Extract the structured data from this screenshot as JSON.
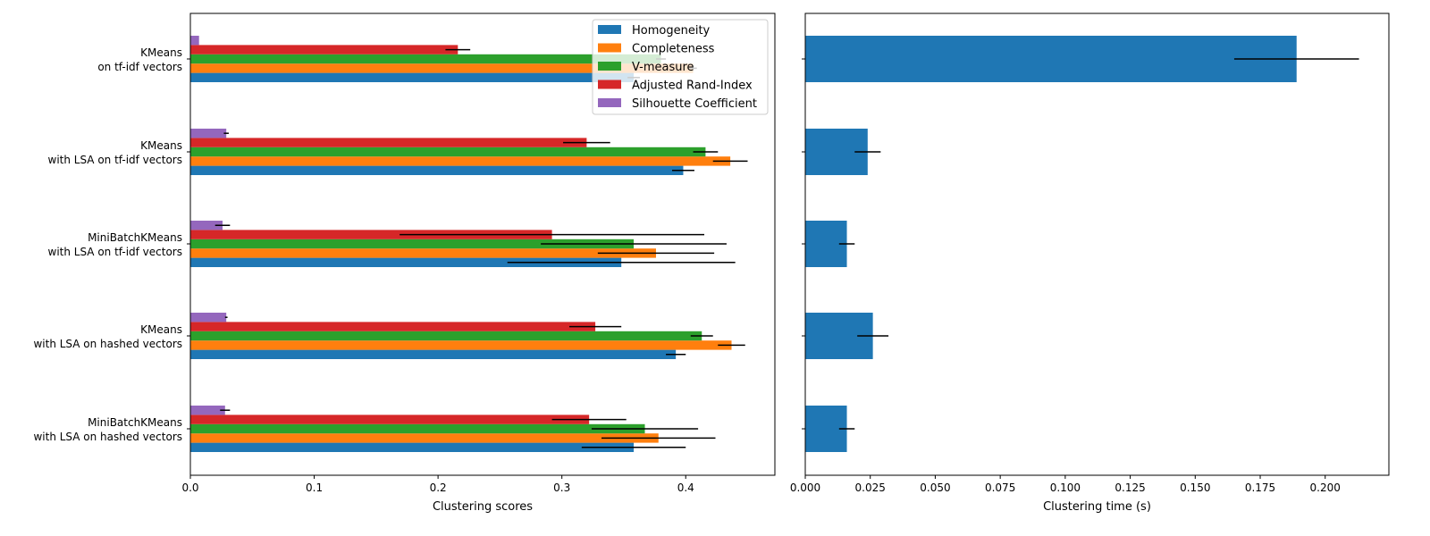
{
  "chart_data": [
    {
      "type": "bar",
      "orientation": "horizontal",
      "title": "",
      "xlabel": "Clustering scores",
      "ylabel": "",
      "xlim": [
        0,
        0.472
      ],
      "xticks": [
        "0.0",
        "0.1",
        "0.2",
        "0.3",
        "0.4"
      ],
      "grid": false,
      "legend_position": "top-right",
      "categories": [
        [
          "KMeans",
          "on tf-idf vectors"
        ],
        [
          "KMeans",
          "with LSA on tf-idf vectors"
        ],
        [
          "MiniBatchKMeans",
          "with LSA on tf-idf vectors"
        ],
        [
          "KMeans",
          "with LSA on hashed vectors"
        ],
        [
          "MiniBatchKMeans",
          "with LSA on hashed vectors"
        ]
      ],
      "series": [
        {
          "name": "Homogeneity",
          "color": "#1f77b4",
          "values": [
            0.358,
            0.398,
            0.348,
            0.392,
            0.358
          ],
          "errors": [
            0.005,
            0.009,
            0.092,
            0.008,
            0.042
          ]
        },
        {
          "name": "Completeness",
          "color": "#ff7f0e",
          "values": [
            0.406,
            0.436,
            0.376,
            0.437,
            0.378
          ],
          "errors": [
            0.003,
            0.014,
            0.047,
            0.011,
            0.046
          ]
        },
        {
          "name": "V-measure",
          "color": "#2ca02c",
          "values": [
            0.38,
            0.416,
            0.358,
            0.413,
            0.367
          ],
          "errors": [
            0.004,
            0.01,
            0.075,
            0.009,
            0.043
          ]
        },
        {
          "name": "Adjusted Rand-Index",
          "color": "#d62728",
          "values": [
            0.216,
            0.32,
            0.292,
            0.327,
            0.322
          ],
          "errors": [
            0.01,
            0.019,
            0.123,
            0.021,
            0.03
          ]
        },
        {
          "name": "Silhouette Coefficient",
          "color": "#9467bd",
          "values": [
            0.007,
            0.029,
            0.026,
            0.029,
            0.028
          ],
          "errors": [
            0.0,
            0.002,
            0.006,
            0.001,
            0.004
          ]
        }
      ]
    },
    {
      "type": "bar",
      "orientation": "horizontal",
      "title": "",
      "xlabel": "Clustering time (s)",
      "ylabel": "",
      "xlim": [
        0,
        0.2245
      ],
      "xticks": [
        "0.000",
        "0.025",
        "0.050",
        "0.075",
        "0.100",
        "0.125",
        "0.150",
        "0.175",
        "0.200"
      ],
      "grid": false,
      "series": [
        {
          "name": "",
          "color": "#1f77b4",
          "values": [
            0.189,
            0.024,
            0.016,
            0.026,
            0.016
          ],
          "errors": [
            0.024,
            0.005,
            0.003,
            0.006,
            0.003
          ]
        }
      ]
    }
  ]
}
